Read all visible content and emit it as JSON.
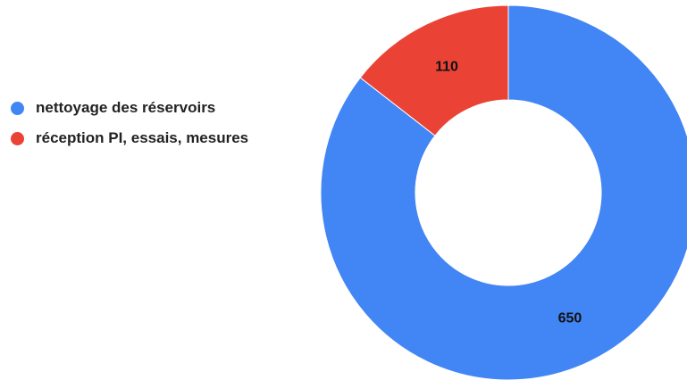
{
  "chart_data": {
    "type": "pie",
    "style": "donut",
    "legend_position": "left",
    "categories": [
      "nettoyage des réservoirs",
      "réception PI, essais, mesures"
    ],
    "values": [
      650,
      110
    ],
    "colors": [
      "#4285f4",
      "#ea4335"
    ],
    "data_labels": [
      "650",
      "110"
    ]
  }
}
